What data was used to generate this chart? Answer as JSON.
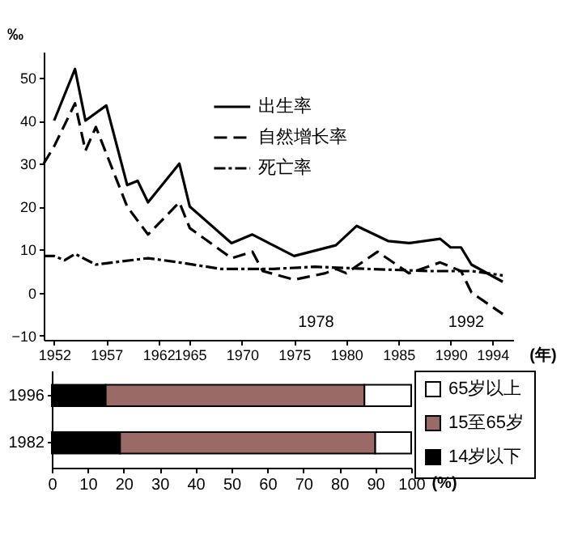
{
  "chart_data": [
    {
      "type": "line",
      "ylabel": "‰",
      "xlabel": "(年)",
      "xlim": [
        1951,
        1996
      ],
      "ylim": [
        -11,
        56
      ],
      "xticks": [
        1952,
        1957,
        1962,
        1965,
        1970,
        1975,
        1980,
        1985,
        1990,
        1994
      ],
      "yticks": [
        -10,
        0,
        10,
        20,
        30,
        40,
        50
      ],
      "legend": "top",
      "series": [
        {
          "name": "出生率",
          "color": "#000000",
          "line_style": "solid",
          "x": [
            1952,
            1954,
            1955,
            1957,
            1959,
            1960,
            1961,
            1964,
            1965,
            1969,
            1971,
            1975,
            1979,
            1981,
            1984,
            1986,
            1989,
            1990,
            1991,
            1992,
            1995
          ],
          "values": [
            40,
            52,
            40,
            43.5,
            25,
            26,
            21,
            30,
            20,
            11.5,
            13.5,
            8.5,
            11,
            15.5,
            12,
            11.5,
            12.5,
            10.5,
            10.5,
            6.5,
            2.5
          ]
        },
        {
          "name": "自然增长率",
          "color": "#000000",
          "line_style": "dashed",
          "x": [
            1951,
            1952,
            1954,
            1955,
            1956,
            1959,
            1961,
            1964,
            1965,
            1969,
            1971,
            1972,
            1975,
            1978,
            1979,
            1980,
            1983,
            1986,
            1989,
            1991,
            1992,
            1995
          ],
          "values": [
            30,
            34,
            44,
            33,
            38.5,
            20,
            13.5,
            21,
            15,
            8,
            9.5,
            5,
            3,
            4.5,
            5.5,
            4.5,
            9.5,
            4.5,
            7,
            5,
            0,
            -5
          ]
        },
        {
          "name": "死亡率",
          "color": "#000000",
          "line_style": "dotted",
          "x": [
            1951,
            1952,
            1953,
            1954,
            1956,
            1961,
            1964,
            1968,
            1973,
            1977,
            1982,
            1988,
            1992,
            1995
          ],
          "values": [
            8.5,
            8.5,
            7.5,
            9,
            6.5,
            8,
            7,
            5.5,
            5.5,
            6,
            5.5,
            5,
            5,
            4
          ]
        }
      ],
      "annotations": [
        "1978",
        "1992"
      ]
    },
    {
      "type": "bar",
      "orientation": "horizontal",
      "stacked": true,
      "categories": [
        "1996",
        "1982"
      ],
      "xlim": [
        0,
        100
      ],
      "xticks": [
        0,
        10,
        20,
        30,
        40,
        50,
        60,
        70,
        80,
        90,
        100
      ],
      "xlabel": "(%)",
      "legend": "right",
      "series": [
        {
          "name": "14岁以下",
          "color": "#000000",
          "values": [
            15,
            19
          ]
        },
        {
          "name": "15至65岁",
          "color": "#9a6a66",
          "values": [
            72,
            71
          ]
        },
        {
          "name": "65岁以上",
          "color": "#ffffff",
          "values": [
            13,
            10
          ]
        }
      ]
    }
  ]
}
